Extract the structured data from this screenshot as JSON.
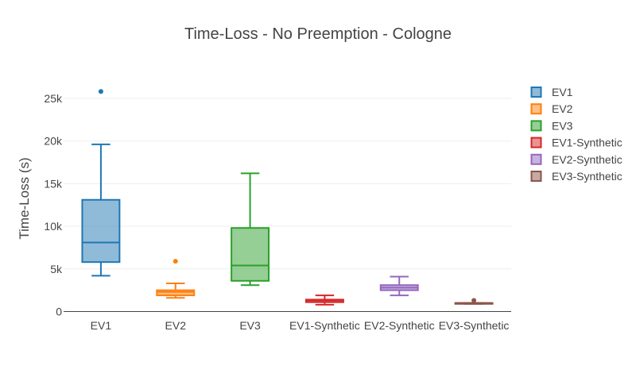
{
  "chart_data": {
    "type": "box",
    "title": "Time-Loss - No Preemption - Cologne",
    "xlabel": "",
    "ylabel": "Time-Loss (s)",
    "ylim": [
      0,
      27500
    ],
    "yticks": [
      0,
      5000,
      10000,
      15000,
      20000,
      25000
    ],
    "ytick_labels": [
      "0",
      "5k",
      "10k",
      "15k",
      "20k",
      "25k"
    ],
    "grid": true,
    "legend_position": "right",
    "categories": [
      "EV1",
      "EV2",
      "EV3",
      "EV1-Synthetic",
      "EV2-Synthetic",
      "EV3-Synthetic"
    ],
    "series": [
      {
        "name": "EV1",
        "color": "#1f77b4",
        "min": 4200,
        "q1": 5800,
        "median": 8100,
        "q3": 13100,
        "max": 19600,
        "outliers": [
          25800
        ]
      },
      {
        "name": "EV2",
        "color": "#ff7f0e",
        "min": 1600,
        "q1": 1900,
        "median": 2300,
        "q3": 2500,
        "max": 3300,
        "outliers": [
          5900
        ]
      },
      {
        "name": "EV3",
        "color": "#2ca02c",
        "min": 3100,
        "q1": 3600,
        "median": 5400,
        "q3": 9800,
        "max": 16200,
        "outliers": []
      },
      {
        "name": "EV1-Synthetic",
        "color": "#d62728",
        "min": 800,
        "q1": 1100,
        "median": 1300,
        "q3": 1400,
        "max": 1900,
        "outliers": []
      },
      {
        "name": "EV2-Synthetic",
        "color": "#9467bd",
        "min": 1900,
        "q1": 2500,
        "median": 2800,
        "q3": 3100,
        "max": 4100,
        "outliers": []
      },
      {
        "name": "EV3-Synthetic",
        "color": "#8c564b",
        "min": 900,
        "q1": 900,
        "median": 1000,
        "q3": 1000,
        "max": 1000,
        "outliers": [
          1300
        ]
      }
    ]
  }
}
